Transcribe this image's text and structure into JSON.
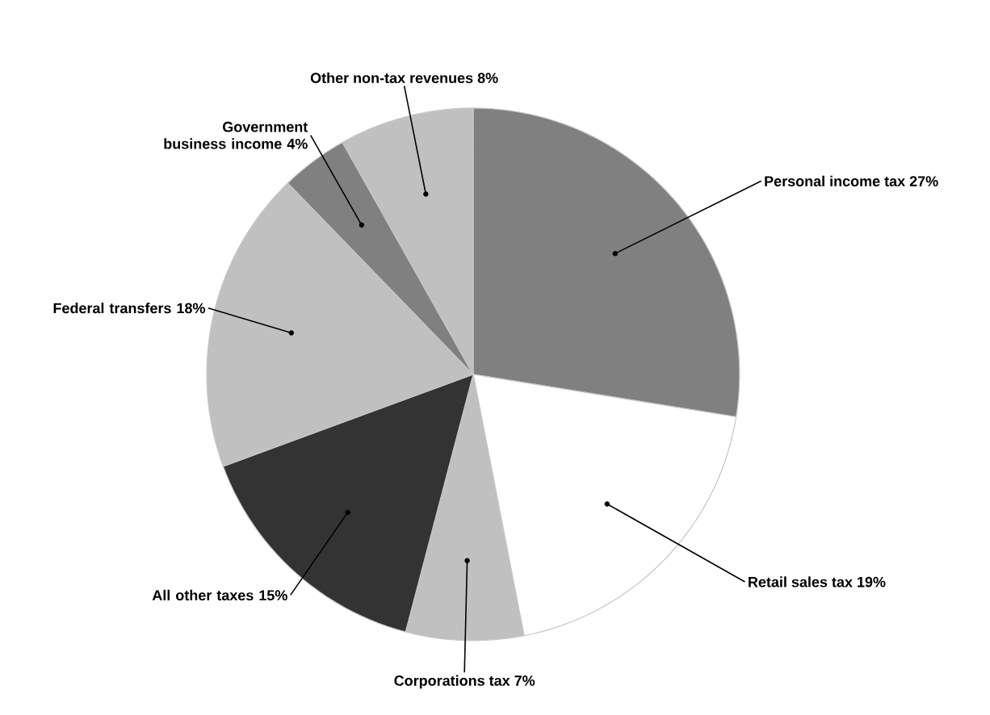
{
  "chart_data": {
    "type": "pie",
    "categories": [
      "Personal income tax",
      "Retail sales tax",
      "Corporations tax",
      "All other taxes",
      "Federal transfers",
      "Government business income",
      "Other non-tax revenues"
    ],
    "values": [
      27,
      19,
      7,
      15,
      18,
      4,
      8
    ],
    "value_labels": [
      "27%",
      "19%",
      "7%",
      "15%",
      "18%",
      "4%",
      "8%"
    ],
    "colors": [
      "#808080",
      "#ffffff",
      "#c0c0c0",
      "#333333",
      "#c0c0c0",
      "#808080",
      "#c0c0c0"
    ]
  }
}
